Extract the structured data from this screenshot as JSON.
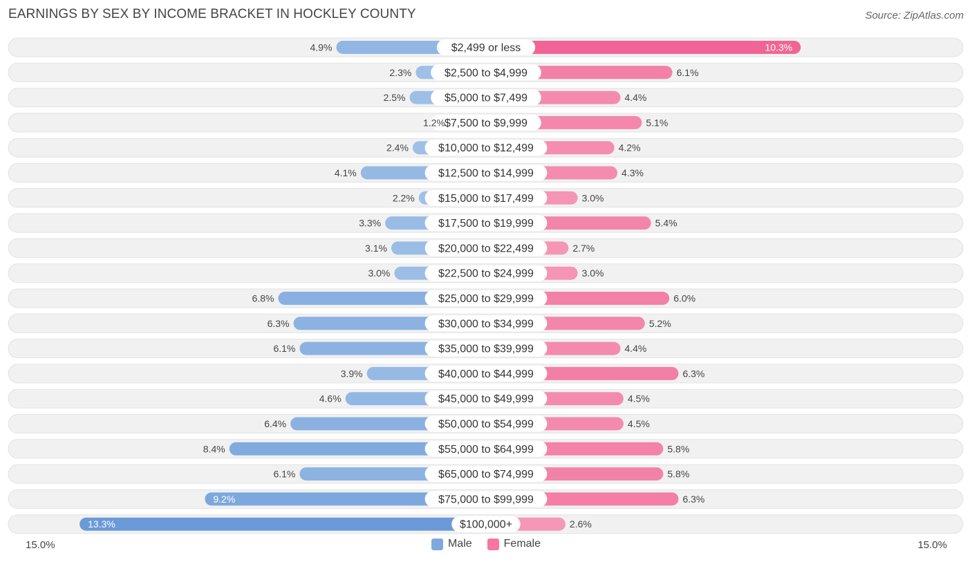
{
  "header": {
    "title": "EARNINGS BY SEX BY INCOME BRACKET IN HOCKLEY COUNTY",
    "source": "Source: ZipAtlas.com"
  },
  "colors": {
    "male": "#7fa9dd",
    "male_strong": "#6a9ad8",
    "male_light": "#a9c7ea",
    "female": "#f5779f",
    "female_strong": "#f06595",
    "female_light": "#f7a8c1",
    "row_bg": "#f1f1f1"
  },
  "chart_data": {
    "type": "bar",
    "orientation": "horizontal-diverging",
    "title": "EARNINGS BY SEX BY INCOME BRACKET IN HOCKLEY COUNTY",
    "categories": [
      "$2,499 or less",
      "$2,500 to $4,999",
      "$5,000 to $7,499",
      "$7,500 to $9,999",
      "$10,000 to $12,499",
      "$12,500 to $14,999",
      "$15,000 to $17,499",
      "$17,500 to $19,999",
      "$20,000 to $22,499",
      "$22,500 to $24,999",
      "$25,000 to $29,999",
      "$30,000 to $34,999",
      "$35,000 to $39,999",
      "$40,000 to $44,999",
      "$45,000 to $49,999",
      "$50,000 to $54,999",
      "$55,000 to $64,999",
      "$65,000 to $74,999",
      "$75,000 to $99,999",
      "$100,000+"
    ],
    "series": [
      {
        "name": "Male",
        "values": [
          4.9,
          2.3,
          2.5,
          1.2,
          2.4,
          4.1,
          2.2,
          3.3,
          3.1,
          3.0,
          6.8,
          6.3,
          6.1,
          3.9,
          4.6,
          6.4,
          8.4,
          6.1,
          9.2,
          13.3
        ],
        "labels": [
          "4.9%",
          "2.3%",
          "2.5%",
          "1.2%",
          "2.4%",
          "4.1%",
          "2.2%",
          "3.3%",
          "3.1%",
          "3.0%",
          "6.8%",
          "6.3%",
          "6.1%",
          "3.9%",
          "4.6%",
          "6.4%",
          "8.4%",
          "6.1%",
          "9.2%",
          "13.3%"
        ]
      },
      {
        "name": "Female",
        "values": [
          10.3,
          6.1,
          4.4,
          5.1,
          4.2,
          4.3,
          3.0,
          5.4,
          2.7,
          3.0,
          6.0,
          5.2,
          4.4,
          6.3,
          4.5,
          4.5,
          5.8,
          5.8,
          6.3,
          2.6
        ],
        "labels": [
          "10.3%",
          "6.1%",
          "4.4%",
          "5.1%",
          "4.2%",
          "4.3%",
          "3.0%",
          "5.4%",
          "2.7%",
          "3.0%",
          "6.0%",
          "5.2%",
          "4.4%",
          "6.3%",
          "4.5%",
          "4.5%",
          "5.8%",
          "5.8%",
          "6.3%",
          "2.6%"
        ]
      }
    ],
    "xlim": [
      -15.0,
      15.0
    ],
    "axis_labels": {
      "left": "15.0%",
      "right": "15.0%"
    },
    "legend": {
      "position": "bottom-center",
      "entries": [
        "Male",
        "Female"
      ]
    }
  }
}
